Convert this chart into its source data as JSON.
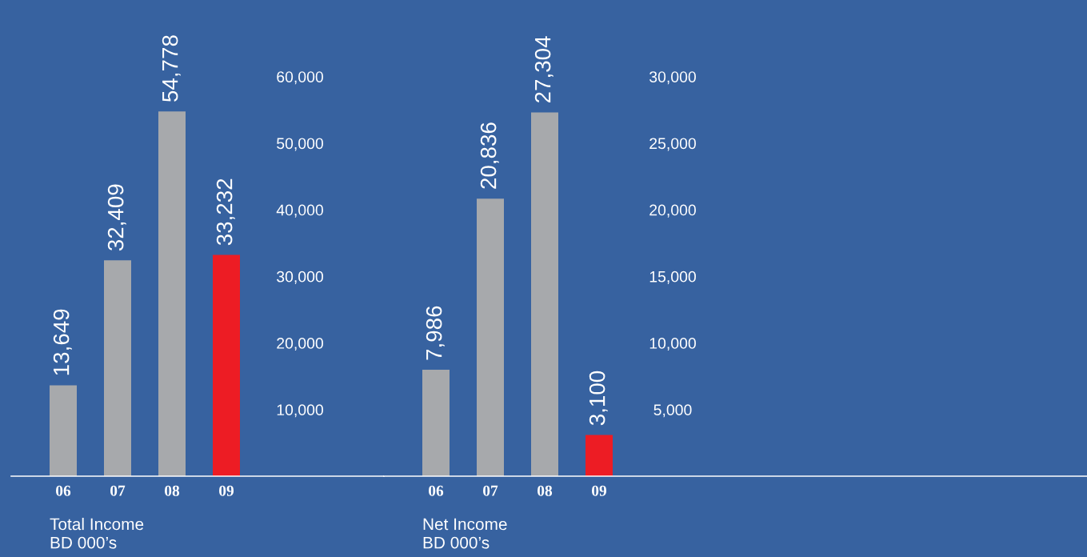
{
  "chart_data": [
    {
      "type": "bar",
      "categories": [
        "06",
        "07",
        "08",
        "09"
      ],
      "values": [
        13649,
        32409,
        54778,
        33232
      ],
      "colors": [
        "#a7a9ac",
        "#a7a9ac",
        "#a7a9ac",
        "#ed1c24"
      ],
      "value_labels": [
        "13,649",
        "32,409",
        "54,778",
        "33,232"
      ],
      "xlabel": "Total Income\nBD 000’s",
      "ylim": [
        0,
        71500
      ],
      "yticks": [
        {
          "value": 10000,
          "label": "10,000"
        },
        {
          "value": 20000,
          "label": "20,000"
        },
        {
          "value": 30000,
          "label": "30,000"
        },
        {
          "value": 40000,
          "label": "40,000"
        },
        {
          "value": 50000,
          "label": "50,000"
        },
        {
          "value": 60000,
          "label": "60,000"
        }
      ],
      "grid": false,
      "legend": false
    },
    {
      "type": "bar",
      "categories": [
        "06",
        "07",
        "08",
        "09"
      ],
      "values": [
        7986,
        20836,
        27304,
        3100
      ],
      "colors": [
        "#a7a9ac",
        "#a7a9ac",
        "#a7a9ac",
        "#ed1c24"
      ],
      "value_labels": [
        "7,986",
        "20,836",
        "27,304",
        "3,100"
      ],
      "xlabel": "Net Income\nBD 000’s",
      "ylim": [
        0,
        35750
      ],
      "yticks": [
        {
          "value": 5000,
          "label": "5,000"
        },
        {
          "value": 10000,
          "label": "10,000"
        },
        {
          "value": 15000,
          "label": "15,000"
        },
        {
          "value": 20000,
          "label": "20,000"
        },
        {
          "value": 25000,
          "label": "25,000"
        },
        {
          "value": 30000,
          "label": "30,000"
        }
      ],
      "grid": false,
      "legend": false
    }
  ]
}
